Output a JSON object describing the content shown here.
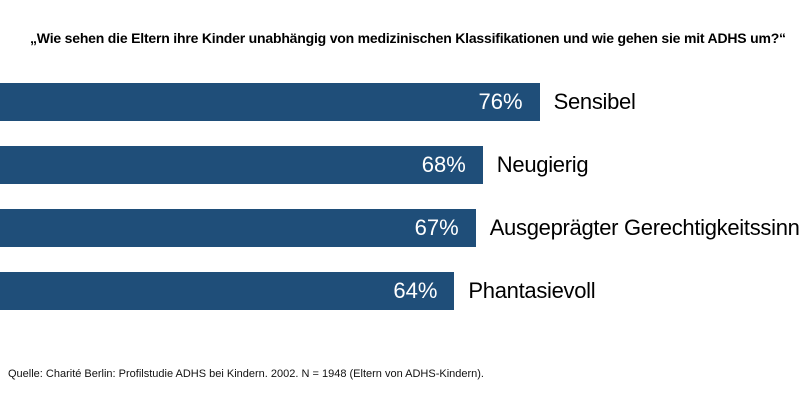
{
  "title": "„Wie sehen die Eltern ihre Kinder unabhängig von medizinischen Klassifikationen und wie gehen sie mit ADHS um?“",
  "source": "Quelle: Charité Berlin: Profilstudie ADHS bei Kindern. 2002. N = 1948 (Eltern von ADHS-Kindern).",
  "chart_data": {
    "type": "bar",
    "orientation": "horizontal",
    "title": "„Wie sehen die Eltern ihre Kinder unabhängig von medizinischen Klassifikationen und wie gehen sie mit ADHS um?“",
    "categories": [
      "Sensibel",
      "Neugierig",
      "Ausgeprägter Gerechtigkeitssinn",
      "Phantasievoll"
    ],
    "values": [
      76,
      68,
      67,
      64
    ],
    "value_labels": [
      "76%",
      "68%",
      "67%",
      "64%"
    ],
    "value_suffix": "%",
    "xlim": [
      0,
      100
    ],
    "grid": false,
    "legend": false,
    "value_labels_inside_bars": true,
    "bar_color": "#1F4E79",
    "value_label_color": "#FFFFFF",
    "category_label_color": "#000000",
    "source_note": "Quelle: Charité Berlin: Profilstudie ADHS bei Kindern. 2002. N = 1948 (Eltern von ADHS-Kindern)."
  }
}
